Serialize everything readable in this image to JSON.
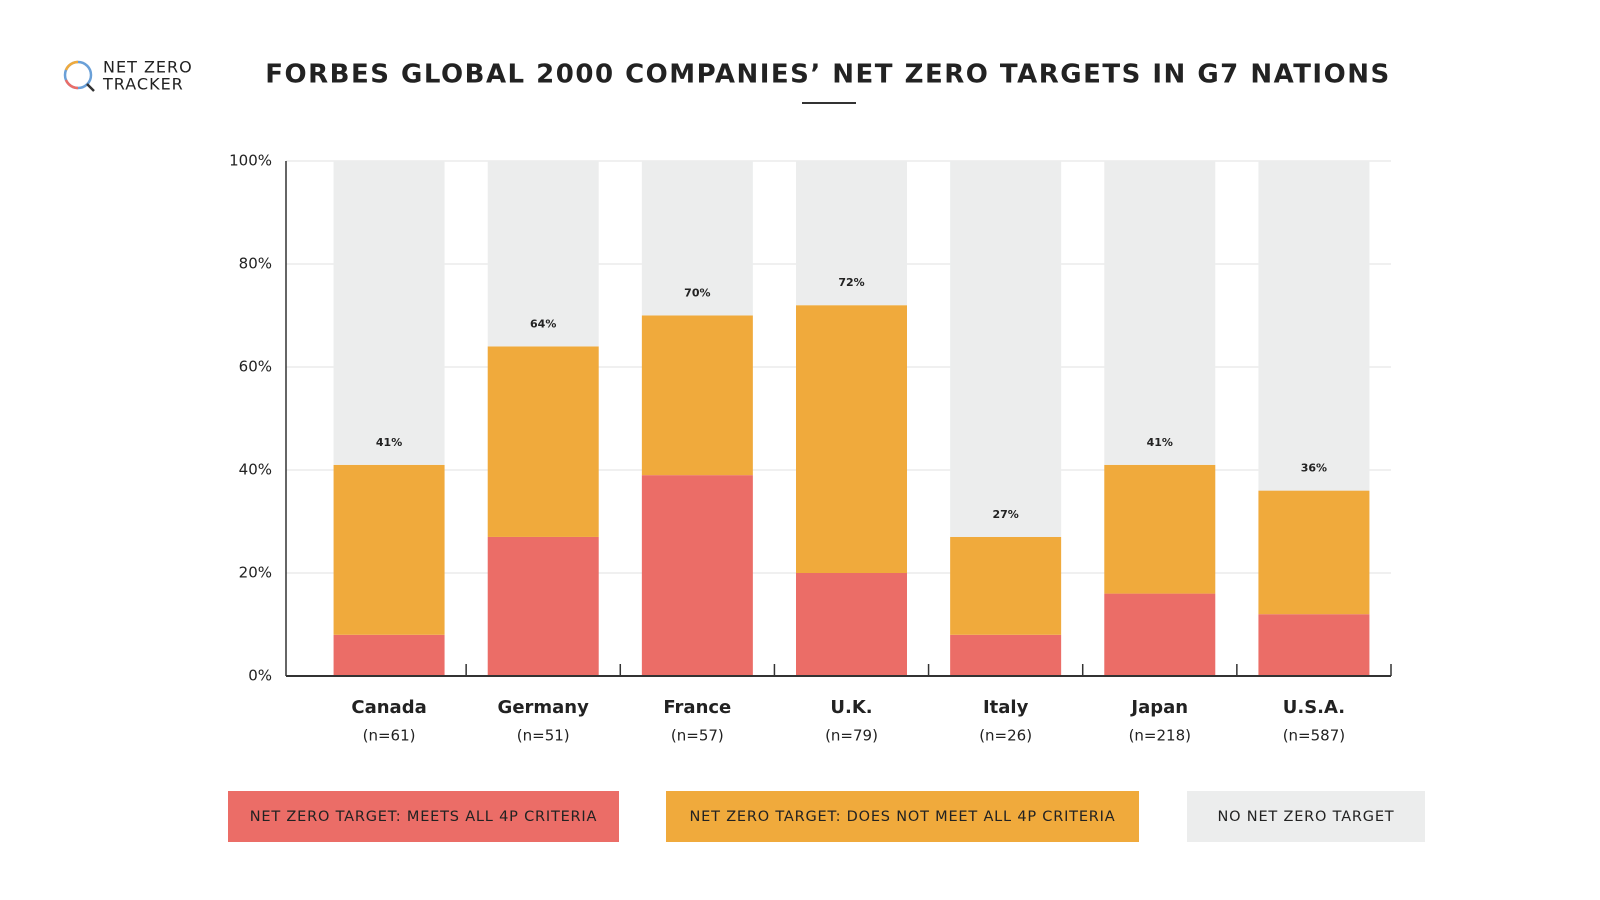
{
  "chart_data": {
    "type": "stacked_bar",
    "title": "FORBES GLOBAL 2000 COMPANIES’ NET ZERO TARGETS IN G7 NATIONS",
    "logo_lines": [
      "NET ZERO",
      "TRACKER"
    ],
    "categories": [
      "Canada",
      "Germany",
      "France",
      "U.K.",
      "Italy",
      "Japan",
      "U.S.A."
    ],
    "sample_sizes": [
      "(n=61)",
      "(n=51)",
      "(n=57)",
      "(n=79)",
      "(n=26)",
      "(n=218)",
      "(n=587)"
    ],
    "series": [
      {
        "name": "NET ZERO TARGET: MEETS ALL 4P CRITERIA",
        "color": "#eb6d67",
        "values": [
          8,
          27,
          39,
          20,
          8,
          16,
          12
        ]
      },
      {
        "name": "NET ZERO TARGET: DOES NOT MEET ALL 4P CRITERIA",
        "color": "#f0aa3c",
        "values": [
          33,
          37,
          31,
          52,
          19,
          25,
          24
        ]
      },
      {
        "name": "NO NET ZERO TARGET",
        "color": "#eceded",
        "values": [
          59,
          36,
          30,
          28,
          73,
          59,
          64
        ]
      }
    ],
    "totals": {
      "values": [
        41,
        64,
        70,
        72,
        27,
        41,
        36
      ],
      "value_labels": [
        "41%",
        "64%",
        "70%",
        "72%",
        "27%",
        "41%",
        "36%"
      ]
    },
    "ylim": [
      0,
      100
    ],
    "yticks": [
      {
        "value": 0,
        "label": "0%"
      },
      {
        "value": 20,
        "label": "20%"
      },
      {
        "value": 40,
        "label": "40%"
      },
      {
        "value": 60,
        "label": "60%"
      },
      {
        "value": 80,
        "label": "80%"
      },
      {
        "value": 100,
        "label": "100%"
      }
    ],
    "grid": true,
    "legend": "bottom"
  }
}
